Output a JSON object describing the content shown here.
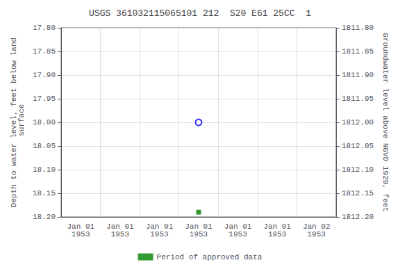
{
  "chart_data": {
    "type": "scatter",
    "title": "USGS 361032115065101 212  S20 E61 25CC  1",
    "ylabel": "Depth to water level, feet below land\n surface",
    "y2label": "Groundwater level above NGVD 1929, feet",
    "categories": [
      "Jan 01\n1953",
      "Jan 01\n1953",
      "Jan 01\n1953",
      "Jan 01\n1953",
      "Jan 01\n1953",
      "Jan 01\n1953",
      "Jan 02\n1953"
    ],
    "ylim": [
      18.2,
      17.8
    ],
    "yticks": [
      {
        "value": 17.8,
        "label": "17.80"
      },
      {
        "value": 17.85,
        "label": "17.85"
      },
      {
        "value": 17.9,
        "label": "17.90"
      },
      {
        "value": 17.95,
        "label": "17.95"
      },
      {
        "value": 18.0,
        "label": "18.00"
      },
      {
        "value": 18.05,
        "label": "18.05"
      },
      {
        "value": 18.1,
        "label": "18.10"
      },
      {
        "value": 18.15,
        "label": "18.15"
      },
      {
        "value": 18.2,
        "label": "18.20"
      }
    ],
    "y2lim": [
      1812.2,
      1811.8
    ],
    "y2ticks": [
      {
        "value": 1812.2,
        "label": "1812.20"
      },
      {
        "value": 1812.15,
        "label": "1812.15"
      },
      {
        "value": 1812.1,
        "label": "1812.10"
      },
      {
        "value": 1812.05,
        "label": "1812.05"
      },
      {
        "value": 1812.0,
        "label": "1812.00"
      },
      {
        "value": 1811.95,
        "label": "1811.95"
      },
      {
        "value": 1811.9,
        "label": "1811.90"
      },
      {
        "value": 1811.85,
        "label": "1811.85"
      },
      {
        "value": 1811.8,
        "label": "1811.80"
      }
    ],
    "series": [
      {
        "color": "blue",
        "marker": "circle_open",
        "values": [
          null,
          null,
          null,
          18.0,
          null,
          null,
          null
        ]
      },
      {
        "name": "Period of approved data",
        "color": "#008000",
        "marker": "square",
        "values": [
          null,
          null,
          null,
          18.19,
          null,
          null,
          null
        ]
      }
    ],
    "grid": true,
    "legend": "bottom"
  }
}
